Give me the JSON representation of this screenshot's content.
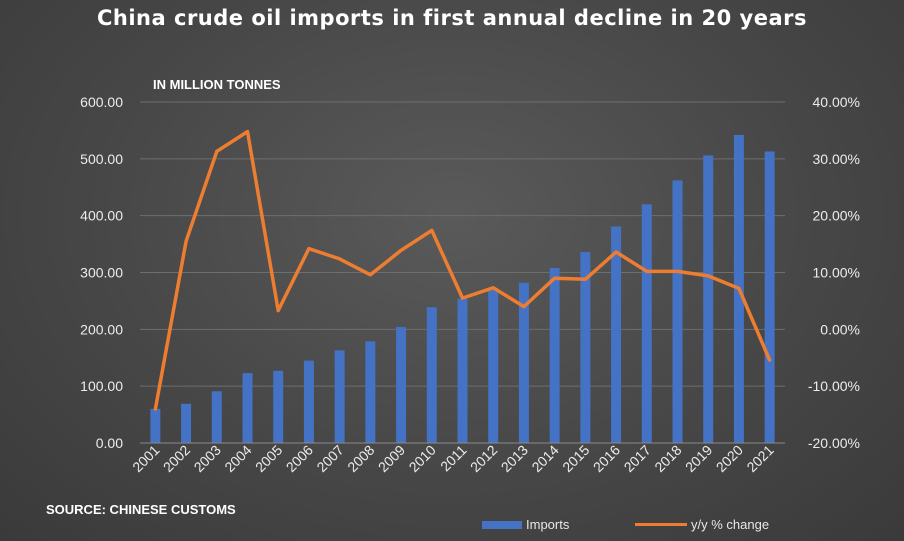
{
  "title": "China crude oil imports in first annual decline in 20 years",
  "unit_label": "IN MILLION TONNES",
  "source": "SOURCE: CHINESE CUSTOMS",
  "chart_data": {
    "type": "bar",
    "categories": [
      "2001",
      "2002",
      "2003",
      "2004",
      "2005",
      "2006",
      "2007",
      "2008",
      "2009",
      "2010",
      "2011",
      "2012",
      "2013",
      "2014",
      "2015",
      "2016",
      "2017",
      "2018",
      "2019",
      "2020",
      "2021"
    ],
    "series": [
      {
        "name": "Imports",
        "type": "bar",
        "axis": "left",
        "color": "#4472c4",
        "values": [
          60,
          69,
          91,
          123,
          127,
          145,
          163,
          179,
          204,
          239,
          254,
          271,
          282,
          308,
          336,
          381,
          420,
          462,
          506,
          542,
          513
        ]
      },
      {
        "name": "y/y % change",
        "type": "line",
        "axis": "right",
        "color": "#ed7d31",
        "values": [
          -14.0,
          15.5,
          31.3,
          34.8,
          3.3,
          14.2,
          12.4,
          9.6,
          13.9,
          17.4,
          5.5,
          7.3,
          4.0,
          9.0,
          8.8,
          13.6,
          10.2,
          10.2,
          9.4,
          7.2,
          -5.4
        ]
      }
    ],
    "y_left": {
      "min": 0,
      "max": 600,
      "ticks": [
        "0.00",
        "100.00",
        "200.00",
        "300.00",
        "400.00",
        "500.00",
        "600.00"
      ]
    },
    "y_right": {
      "min": -20,
      "max": 40,
      "ticks": [
        "-20.00%",
        "-10.00%",
        "0.00%",
        "10.00%",
        "20.00%",
        "30.00%",
        "40.00%"
      ]
    },
    "legend": [
      "Imports",
      "y/y % change"
    ],
    "legend_position": "bottom-right",
    "grid": true
  }
}
